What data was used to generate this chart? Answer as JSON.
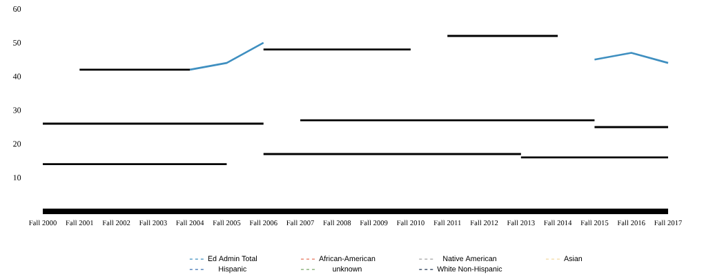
{
  "chart_data": {
    "type": "line",
    "categories": [
      "Fall 2000",
      "Fall 2001",
      "Fall 2002",
      "Fall 2003",
      "Fall 2004",
      "Fall 2005",
      "Fall 2006",
      "Fall 2007",
      "Fall 2008",
      "Fall 2009",
      "Fall 2010",
      "Fall 2011",
      "Fall 2012",
      "Fall 2013",
      "Fall 2014",
      "Fall 2015",
      "Fall 2016",
      "Fall 2017"
    ],
    "series": [
      {
        "name": "Ed Admin Total",
        "color": "#3f8fc0",
        "values": [
          null,
          null,
          null,
          null,
          42,
          44,
          50,
          null,
          null,
          null,
          null,
          null,
          null,
          null,
          null,
          45,
          47,
          44
        ]
      },
      {
        "name": "African-American",
        "color": "#e8735a",
        "values": [
          null,
          null,
          null,
          null,
          null,
          null,
          null,
          null,
          null,
          null,
          null,
          null,
          null,
          null,
          null,
          null,
          null,
          null
        ]
      },
      {
        "name": "Native American",
        "color": "#a0a0a0",
        "values": [
          null,
          null,
          null,
          null,
          null,
          null,
          null,
          null,
          null,
          null,
          null,
          null,
          null,
          null,
          null,
          null,
          null,
          null
        ]
      },
      {
        "name": "Asian",
        "color": "#f2d9a0",
        "values": [
          null,
          null,
          null,
          null,
          null,
          null,
          null,
          null,
          null,
          null,
          null,
          null,
          null,
          null,
          null,
          null,
          null,
          null
        ]
      },
      {
        "name": "Hispanic",
        "color": "#3a6fb0",
        "values": [
          null,
          null,
          null,
          null,
          null,
          null,
          null,
          null,
          null,
          null,
          null,
          null,
          null,
          null,
          null,
          null,
          null,
          null
        ]
      },
      {
        "name": "unknown",
        "color": "#7aa86a",
        "values": [
          null,
          null,
          null,
          null,
          null,
          null,
          null,
          null,
          null,
          null,
          null,
          null,
          null,
          null,
          null,
          null,
          null,
          null
        ]
      },
      {
        "name": "White Non-Hispanic",
        "color": "#1f3550",
        "values": [
          null,
          null,
          null,
          null,
          null,
          null,
          null,
          null,
          null,
          null,
          null,
          null,
          null,
          null,
          null,
          null,
          null,
          null
        ]
      },
      {
        "color": "#000000",
        "values": [
          null,
          42,
          42,
          42,
          42,
          null,
          null,
          null,
          null,
          null,
          null,
          null,
          null,
          null,
          null,
          null,
          null,
          null
        ]
      },
      {
        "color": "#000000",
        "values": [
          26,
          26,
          26,
          26,
          26,
          26,
          26,
          null,
          null,
          null,
          null,
          null,
          null,
          null,
          null,
          null,
          null,
          null
        ]
      },
      {
        "color": "#000000",
        "values": [
          14,
          14,
          14,
          14,
          14,
          14,
          null,
          null,
          null,
          null,
          null,
          null,
          null,
          null,
          null,
          null,
          null,
          null
        ]
      },
      {
        "color": "#000000",
        "values": [
          null,
          null,
          null,
          null,
          null,
          null,
          48,
          48,
          48,
          48,
          48,
          null,
          null,
          null,
          null,
          null,
          null,
          null
        ]
      },
      {
        "color": "#000000",
        "values": [
          null,
          null,
          null,
          null,
          null,
          null,
          null,
          null,
          null,
          null,
          null,
          52,
          52,
          52,
          52,
          null,
          null,
          null
        ]
      },
      {
        "color": "#000000",
        "values": [
          null,
          null,
          null,
          null,
          null,
          null,
          null,
          27,
          27,
          27,
          27,
          27,
          27,
          27,
          27,
          27,
          null,
          null
        ]
      },
      {
        "color": "#000000",
        "values": [
          null,
          null,
          null,
          null,
          null,
          null,
          17,
          17,
          17,
          17,
          17,
          17,
          17,
          17,
          null,
          null,
          null,
          null
        ]
      },
      {
        "color": "#000000",
        "values": [
          null,
          null,
          null,
          null,
          null,
          null,
          null,
          null,
          null,
          null,
          null,
          null,
          null,
          16,
          16,
          16,
          16,
          16
        ]
      },
      {
        "color": "#000000",
        "values": [
          null,
          null,
          null,
          null,
          null,
          null,
          null,
          null,
          null,
          null,
          null,
          null,
          null,
          null,
          null,
          25,
          25,
          25
        ]
      }
    ],
    "ylim": [
      0,
      60
    ],
    "yticks": [
      10,
      20,
      30,
      40,
      50,
      60
    ],
    "legend": "bottom"
  }
}
